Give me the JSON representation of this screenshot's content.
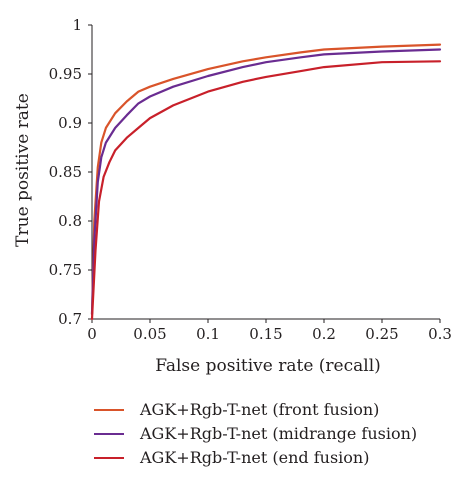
{
  "chart_data": {
    "type": "line",
    "xlabel": "False positive rate (recall)",
    "ylabel": "True positive rate",
    "xlim": [
      0,
      0.3
    ],
    "ylim": [
      0.7,
      1
    ],
    "x_ticks": [
      0,
      0.05,
      0.1,
      0.15,
      0.2,
      0.25,
      0.3
    ],
    "x_tick_labels": [
      "0",
      "0.05",
      "0.1",
      "0.15",
      "0.2",
      "0.25",
      "0.3"
    ],
    "y_ticks": [
      0.7,
      0.75,
      0.8,
      0.85,
      0.9,
      0.95,
      1
    ],
    "y_tick_labels": [
      "0.7",
      "0.75",
      "0.8",
      "0.85",
      "0.9",
      "0.95",
      "1"
    ],
    "grid": false,
    "legend_position": "bottom",
    "series": [
      {
        "name": "AGK+Rgb-T-net (front fusion)",
        "color": "#d9542a",
        "x": [
          0,
          0.002,
          0.005,
          0.008,
          0.012,
          0.02,
          0.03,
          0.04,
          0.05,
          0.07,
          0.1,
          0.13,
          0.15,
          0.18,
          0.2,
          0.25,
          0.3
        ],
        "y": [
          0.705,
          0.8,
          0.855,
          0.88,
          0.895,
          0.91,
          0.922,
          0.932,
          0.937,
          0.945,
          0.955,
          0.963,
          0.967,
          0.972,
          0.975,
          0.978,
          0.98
        ]
      },
      {
        "name": "AGK+Rgb-T-net (midrange fusion)",
        "color": "#6a2c91",
        "x": [
          0,
          0.002,
          0.005,
          0.008,
          0.012,
          0.02,
          0.03,
          0.04,
          0.05,
          0.07,
          0.1,
          0.13,
          0.15,
          0.18,
          0.2,
          0.25,
          0.3
        ],
        "y": [
          0.705,
          0.78,
          0.84,
          0.865,
          0.88,
          0.895,
          0.908,
          0.92,
          0.927,
          0.937,
          0.948,
          0.957,
          0.962,
          0.967,
          0.97,
          0.973,
          0.975
        ]
      },
      {
        "name": "AGK+Rgb-T-net (end fusion)",
        "color": "#c8202a",
        "x": [
          0,
          0.003,
          0.006,
          0.01,
          0.015,
          0.02,
          0.03,
          0.04,
          0.05,
          0.07,
          0.1,
          0.13,
          0.15,
          0.18,
          0.2,
          0.25,
          0.3
        ],
        "y": [
          0.7,
          0.77,
          0.82,
          0.845,
          0.86,
          0.872,
          0.885,
          0.895,
          0.905,
          0.918,
          0.932,
          0.942,
          0.947,
          0.953,
          0.957,
          0.962,
          0.963
        ]
      }
    ]
  }
}
